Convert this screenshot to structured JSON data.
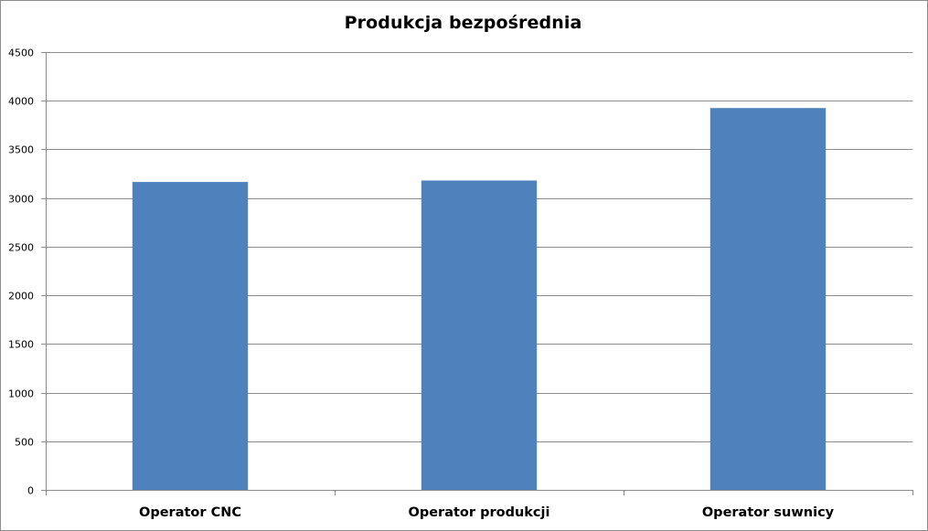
{
  "chart_data": {
    "type": "bar",
    "title": "Produkcja bezpośrednia",
    "categories": [
      "Operator CNC",
      "Operator produkcji",
      "Operator suwnicy"
    ],
    "series": [
      {
        "values": [
          3165,
          3180,
          3925
        ]
      }
    ],
    "y_ticks": [
      "0",
      "500",
      "1000",
      "1500",
      "2000",
      "2500",
      "3000",
      "3500",
      "4000",
      "4500"
    ],
    "ylim": [
      0,
      4500
    ],
    "grid": true,
    "legend": "none",
    "bar_color": "#4f81bd",
    "grid_color": "#8c8c8c"
  }
}
